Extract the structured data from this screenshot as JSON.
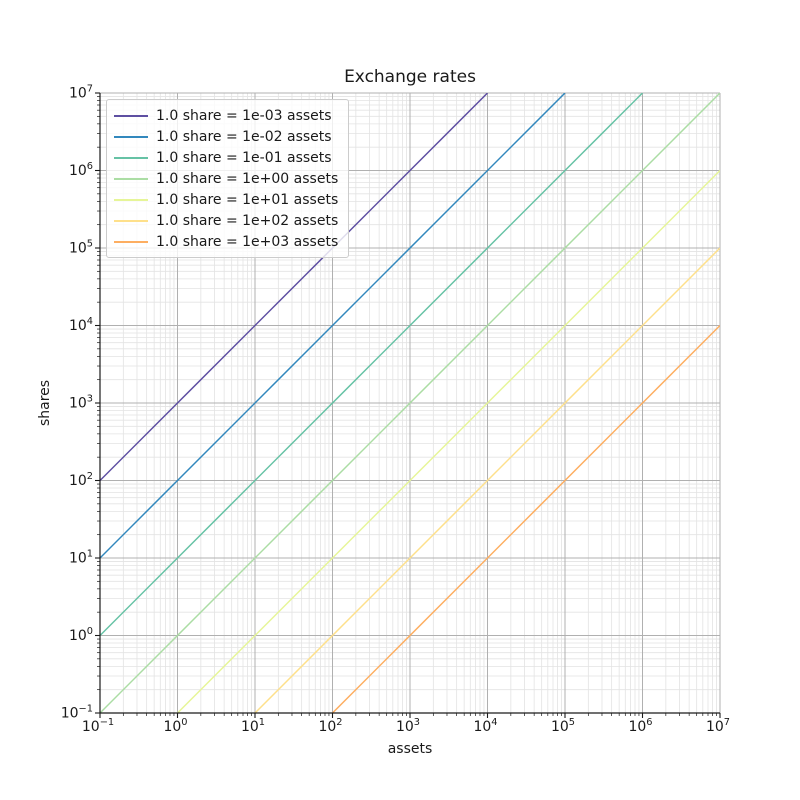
{
  "chart_data": {
    "type": "line",
    "title": "Exchange rates",
    "xlabel": "assets",
    "ylabel": "shares",
    "xscale": "log",
    "yscale": "log",
    "xlim": [
      0.1,
      10000000
    ],
    "ylim": [
      0.1,
      10000000
    ],
    "x_tick_exponents": [
      -1,
      0,
      1,
      2,
      3,
      4,
      5,
      6,
      7
    ],
    "y_tick_exponents": [
      -1,
      0,
      1,
      2,
      3,
      4,
      5,
      6,
      7
    ],
    "tick_label_format": "10^exponent",
    "grid": {
      "enabled": true,
      "which": "both",
      "major_color": "#b0b0b0",
      "minor_color": "#e3e3e3"
    },
    "legend_position": "upper left",
    "relation": "shares = assets / rate",
    "series": [
      {
        "name": "1.0 share = 1e-03 assets",
        "rate": 0.001,
        "color": "#5e4fa2",
        "endpoints_xy": [
          [
            0.1,
            100
          ],
          [
            10000,
            10000000
          ]
        ]
      },
      {
        "name": "1.0 share = 1e-02 assets",
        "rate": 0.01,
        "color": "#3288bd",
        "endpoints_xy": [
          [
            0.1,
            10
          ],
          [
            100000,
            10000000
          ]
        ]
      },
      {
        "name": "1.0 share = 1e-01 assets",
        "rate": 0.1,
        "color": "#66c2a5",
        "endpoints_xy": [
          [
            0.1,
            1
          ],
          [
            1000000,
            10000000
          ]
        ]
      },
      {
        "name": "1.0 share = 1e+00 assets",
        "rate": 1,
        "color": "#abdda4",
        "endpoints_xy": [
          [
            0.1,
            0.1
          ],
          [
            10000000,
            10000000
          ]
        ]
      },
      {
        "name": "1.0 share = 1e+01 assets",
        "rate": 10,
        "color": "#e6f598",
        "endpoints_xy": [
          [
            1,
            0.1
          ],
          [
            10000000,
            1000000
          ]
        ]
      },
      {
        "name": "1.0 share = 1e+02 assets",
        "rate": 100,
        "color": "#fee08b",
        "endpoints_xy": [
          [
            10,
            0.1
          ],
          [
            10000000,
            100000
          ]
        ]
      },
      {
        "name": "1.0 share = 1e+03 assets",
        "rate": 1000,
        "color": "#fdae61",
        "endpoints_xy": [
          [
            100,
            0.1
          ],
          [
            10000000,
            10000
          ]
        ]
      }
    ],
    "style": {
      "spine_color": "#1a1a1a",
      "text_color": "#1a1a1a",
      "background": "#ffffff",
      "line_width": 1.5
    }
  }
}
